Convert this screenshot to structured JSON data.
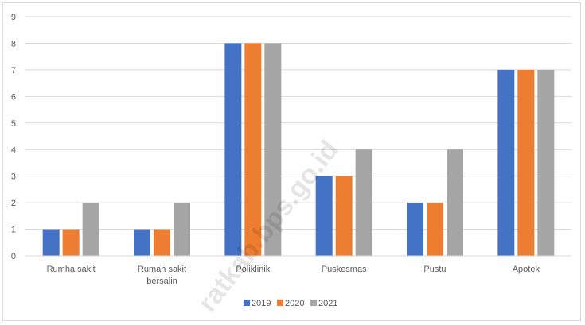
{
  "chart_data": {
    "type": "bar",
    "title": "",
    "xlabel": "",
    "ylabel": "",
    "categories": [
      [
        "Rumha sakit"
      ],
      [
        "Rumah sakit",
        "bersalin"
      ],
      [
        "Poliklinik"
      ],
      [
        "Puskesmas"
      ],
      [
        "Pustu"
      ],
      [
        "Apotek"
      ]
    ],
    "series": [
      {
        "name": "2019",
        "color": "#4472c4",
        "values": [
          1,
          1,
          8,
          3,
          2,
          7
        ]
      },
      {
        "name": "2020",
        "color": "#ed7d31",
        "values": [
          1,
          1,
          8,
          3,
          2,
          7
        ]
      },
      {
        "name": "2021",
        "color": "#a5a5a5",
        "values": [
          2,
          2,
          8,
          4,
          4,
          7
        ]
      }
    ],
    "ylim": [
      0,
      9
    ],
    "yticks": [
      0,
      1,
      2,
      3,
      4,
      5,
      6,
      7,
      8,
      9
    ],
    "grid": true,
    "legend_position": "bottom"
  },
  "watermark": "ratkab.bps.go.id"
}
